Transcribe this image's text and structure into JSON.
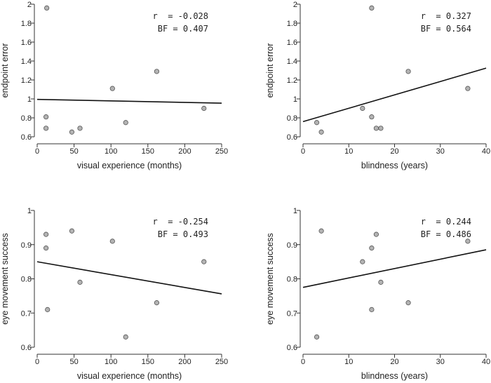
{
  "chart_data": [
    {
      "type": "scatter",
      "xlabel": "visual experience (months)",
      "ylabel": "endpoint error",
      "xlim": [
        0,
        250
      ],
      "ylim": [
        0.6,
        2
      ],
      "xticks": [
        "0",
        "50",
        "100",
        "150",
        "200",
        "250"
      ],
      "yticks": [
        "0.6",
        "0.8",
        "1",
        "1.2",
        "1.4",
        "1.6",
        "1.8",
        "2"
      ],
      "points": [
        [
          13,
          1.96
        ],
        [
          12,
          0.81
        ],
        [
          12,
          0.69
        ],
        [
          47,
          0.65
        ],
        [
          58,
          0.69
        ],
        [
          102,
          1.11
        ],
        [
          120,
          0.75
        ],
        [
          162,
          1.29
        ],
        [
          226,
          0.9
        ]
      ],
      "fit_line": [
        [
          0,
          0.995
        ],
        [
          250,
          0.955
        ]
      ],
      "annotation": {
        "r_label": "r  = ",
        "r_value": "-0.028",
        "bf_label": "BF = ",
        "bf_value": "0.407"
      }
    },
    {
      "type": "scatter",
      "xlabel": "blindness (years)",
      "ylabel": "endpoint error",
      "xlim": [
        0,
        40
      ],
      "ylim": [
        0.6,
        2
      ],
      "xticks": [
        "0",
        "10",
        "20",
        "30",
        "40"
      ],
      "yticks": [
        "0.6",
        "0.8",
        "1",
        "1.2",
        "1.4",
        "1.6",
        "1.8",
        "2"
      ],
      "points": [
        [
          3,
          0.75
        ],
        [
          4,
          0.65
        ],
        [
          13,
          0.9
        ],
        [
          15,
          0.81
        ],
        [
          15,
          1.96
        ],
        [
          16,
          0.69
        ],
        [
          17,
          0.69
        ],
        [
          23,
          1.29
        ],
        [
          36,
          1.11
        ]
      ],
      "fit_line": [
        [
          0,
          0.76
        ],
        [
          40,
          1.325
        ]
      ],
      "annotation": {
        "r_label": "r  = ",
        "r_value": "0.327",
        "bf_label": "BF = ",
        "bf_value": "0.564"
      }
    },
    {
      "type": "scatter",
      "xlabel": "visual experience (months)",
      "ylabel": "eye movement success",
      "xlim": [
        0,
        250
      ],
      "ylim": [
        0.6,
        1
      ],
      "xticks": [
        "0",
        "50",
        "100",
        "150",
        "200",
        "250"
      ],
      "yticks": [
        "0.6",
        "0.7",
        "0.8",
        "0.9",
        "1"
      ],
      "points": [
        [
          12,
          0.93
        ],
        [
          12,
          0.89
        ],
        [
          14,
          0.71
        ],
        [
          47,
          0.94
        ],
        [
          58,
          0.79
        ],
        [
          102,
          0.91
        ],
        [
          120,
          0.63
        ],
        [
          162,
          0.73
        ],
        [
          226,
          0.85
        ]
      ],
      "fit_line": [
        [
          0,
          0.85
        ],
        [
          250,
          0.756
        ]
      ],
      "annotation": {
        "r_label": "r  = ",
        "r_value": "-0.254",
        "bf_label": "BF = ",
        "bf_value": "0.493"
      }
    },
    {
      "type": "scatter",
      "xlabel": "blindness (years)",
      "ylabel": "eye movement success",
      "xlim": [
        0,
        40
      ],
      "ylim": [
        0.6,
        1
      ],
      "xticks": [
        "0",
        "10",
        "20",
        "30",
        "40"
      ],
      "yticks": [
        "0.6",
        "0.7",
        "0.8",
        "0.9",
        "1"
      ],
      "points": [
        [
          3,
          0.63
        ],
        [
          4,
          0.94
        ],
        [
          13,
          0.85
        ],
        [
          15,
          0.89
        ],
        [
          15,
          0.71
        ],
        [
          16,
          0.93
        ],
        [
          17,
          0.79
        ],
        [
          23,
          0.73
        ],
        [
          36,
          0.91
        ]
      ],
      "fit_line": [
        [
          0,
          0.775
        ],
        [
          40,
          0.885
        ]
      ],
      "annotation": {
        "r_label": "r  = ",
        "r_value": "0.244",
        "bf_label": "BF = ",
        "bf_value": "0.486"
      }
    }
  ],
  "colors": {
    "point_fill": "#b3b3b3",
    "point_stroke": "#555555",
    "line": "#111111",
    "axis": "#333333"
  }
}
